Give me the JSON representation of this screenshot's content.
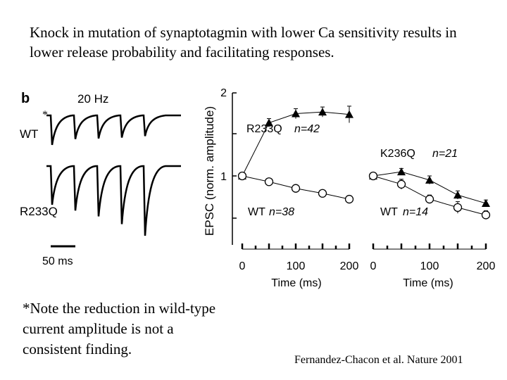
{
  "slide": {
    "title": "Knock in mutation of synaptotagmin with lower Ca sensitivity results in lower release probability and facilitating responses.",
    "note": "*Note the reduction in wild-type current amplitude is not a consistent finding.",
    "citation": "Fernandez-Chacon et al. Nature 2001"
  },
  "traces": {
    "panel_label": "b",
    "frequency_label": "20 Hz",
    "asterisk": "*",
    "wt_label": "WT",
    "mutant_label": "R233Q",
    "scale_label": "50 ms",
    "wt_relative_amplitudes": [
      1.0,
      0.8,
      0.78,
      0.75,
      0.7
    ],
    "r233q_relative_amplitudes": [
      1.0,
      1.15,
      1.3,
      1.5,
      1.8
    ]
  },
  "chart_data": [
    {
      "type": "line",
      "ylabel": "EPSC (norm. amplitude)",
      "xlabel": "Time (ms)",
      "xlim": [
        0,
        200
      ],
      "ylim": [
        0,
        2
      ],
      "xticks": [
        "0",
        "100",
        "200"
      ],
      "yticks": [
        "1",
        "2"
      ],
      "series": [
        {
          "name": "R233Q",
          "n_label": "n=42",
          "marker": "triangle",
          "x": [
            0,
            50,
            100,
            150,
            200
          ],
          "y": [
            1.0,
            1.64,
            1.75,
            1.77,
            1.74
          ],
          "err": [
            0.03,
            0.05,
            0.06,
            0.06,
            0.1
          ]
        },
        {
          "name": "WT",
          "n_label": "n=38",
          "marker": "circle",
          "x": [
            0,
            50,
            100,
            150,
            200
          ],
          "y": [
            1.0,
            0.93,
            0.85,
            0.79,
            0.72
          ],
          "err": [
            0.02,
            0.02,
            0.02,
            0.02,
            0.03
          ]
        }
      ]
    },
    {
      "type": "line",
      "xlabel": "Time (ms)",
      "xlim": [
        0,
        200
      ],
      "ylim": [
        0,
        2
      ],
      "xticks": [
        "0",
        "100",
        "200"
      ],
      "series": [
        {
          "name": "K236Q",
          "n_label": "n=21",
          "marker": "triangle",
          "x": [
            0,
            50,
            100,
            150,
            200
          ],
          "y": [
            1.0,
            1.05,
            0.95,
            0.77,
            0.67
          ],
          "err": [
            0.02,
            0.04,
            0.05,
            0.05,
            0.04
          ]
        },
        {
          "name": "WT",
          "n_label": "n=14",
          "marker": "circle",
          "x": [
            0,
            50,
            100,
            150,
            200
          ],
          "y": [
            1.0,
            0.9,
            0.72,
            0.62,
            0.53
          ],
          "err": [
            0.02,
            0.06,
            0.05,
            0.07,
            0.05
          ]
        }
      ]
    }
  ]
}
